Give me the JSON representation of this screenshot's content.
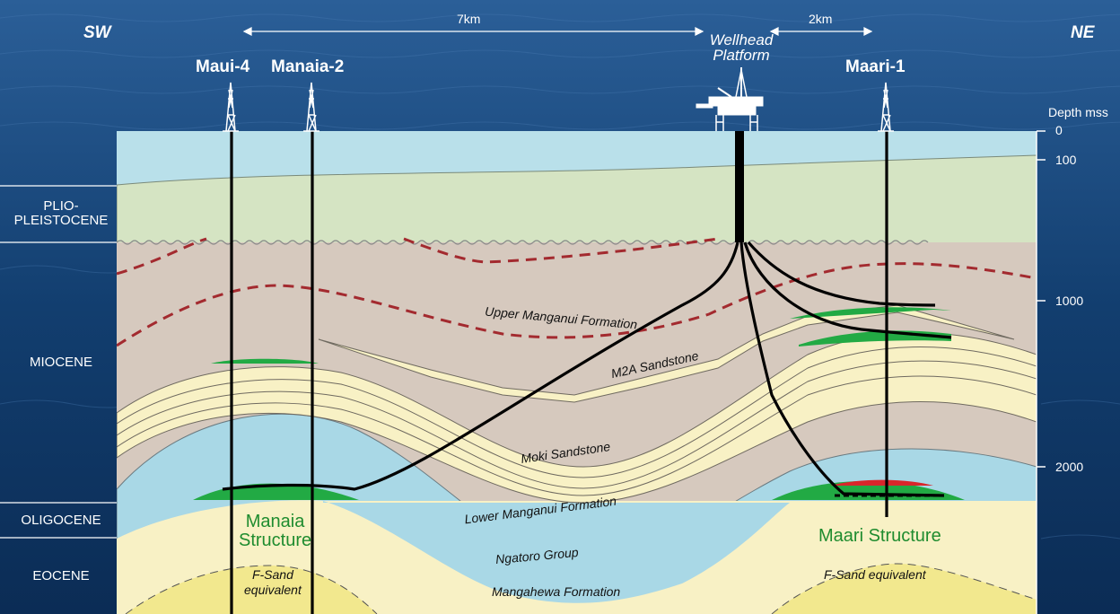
{
  "directions": {
    "left": "SW",
    "right": "NE"
  },
  "distances": {
    "long": "7km",
    "short": "2km"
  },
  "platform": {
    "line1": "Wellhead",
    "line2": "Platform"
  },
  "wells": {
    "maui4": "Maui-4",
    "manaia2": "Manaia-2",
    "maari1": "Maari-1"
  },
  "depth_axis": {
    "title": "Depth mss",
    "ticks": [
      "0",
      "100",
      "1000",
      "2000"
    ]
  },
  "epochs": {
    "plio_1": "PLIO-",
    "plio_2": "PLEISTOCENE",
    "miocene": "MIOCENE",
    "oligocene": "OLIGOCENE",
    "eocene": "EOCENE"
  },
  "formations": {
    "upper_manganui": "Upper Manganui Formation",
    "m2a": "M2A Sandstone",
    "moki": "Moki Sandstone",
    "lower_manganui": "Lower Manganui Formation",
    "ngatoro": "Ngatoro Group",
    "mangahewa": "Mangahewa Formation",
    "fsand_left_1": "F-Sand",
    "fsand_left_2": "equivalent",
    "fsand_right": "F-Sand equivalent"
  },
  "structures": {
    "manaia_1": "Manaia",
    "manaia_2": "Structure",
    "maari": "Maari Structure"
  },
  "colors": {
    "ocean": "#1d4f86",
    "sea": "#b9e0ea",
    "plio": "#d5e4c3",
    "shale": "#d6c9be",
    "sand": "#f8f1c5",
    "ngatoro": "#a9d8e6",
    "fsand": "#f2e88e",
    "green": "#22aa44",
    "red": "#d9262b",
    "dashed_red": "#a32a2f"
  }
}
